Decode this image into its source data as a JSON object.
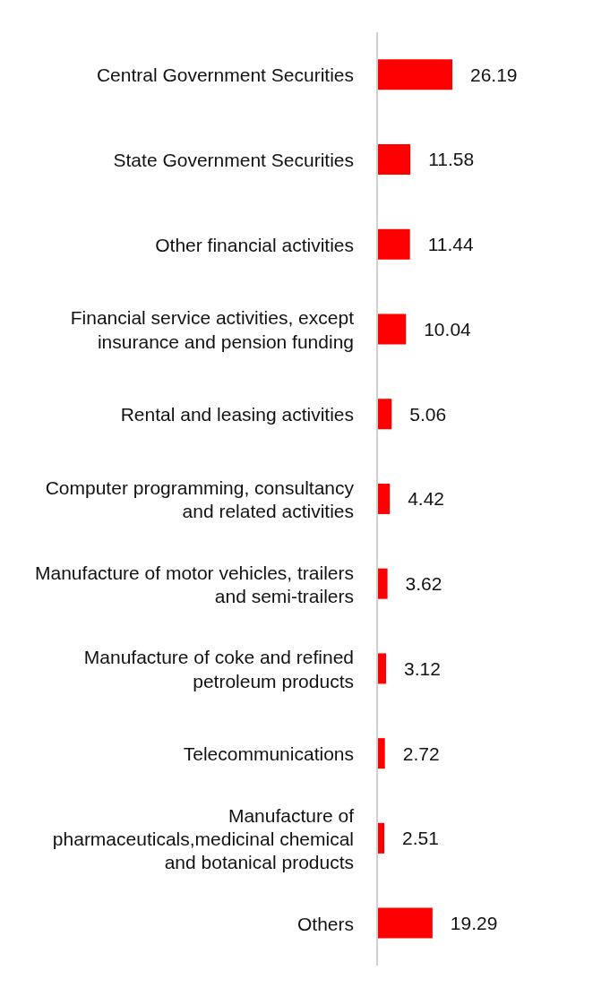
{
  "chart_data": {
    "type": "bar",
    "orientation": "horizontal",
    "data_labels": true,
    "color": "#ff0000",
    "categories": [
      "Central Government Securities",
      "State Government Securities",
      "Other financial activities",
      "Financial service activities, except insurance and pension funding",
      "Rental and leasing activities",
      "Computer programming, consultancy and related activities",
      "Manufacture of motor vehicles, trailers and semi-trailers",
      "Manufacture of coke and refined petroleum products",
      "Telecommunications",
      "Manufacture of pharmaceuticals,medicinal chemical and botanical products",
      "Others"
    ],
    "values": [
      26.19,
      11.58,
      11.44,
      10.04,
      5.06,
      4.42,
      3.62,
      3.12,
      2.72,
      2.51,
      19.29
    ]
  }
}
